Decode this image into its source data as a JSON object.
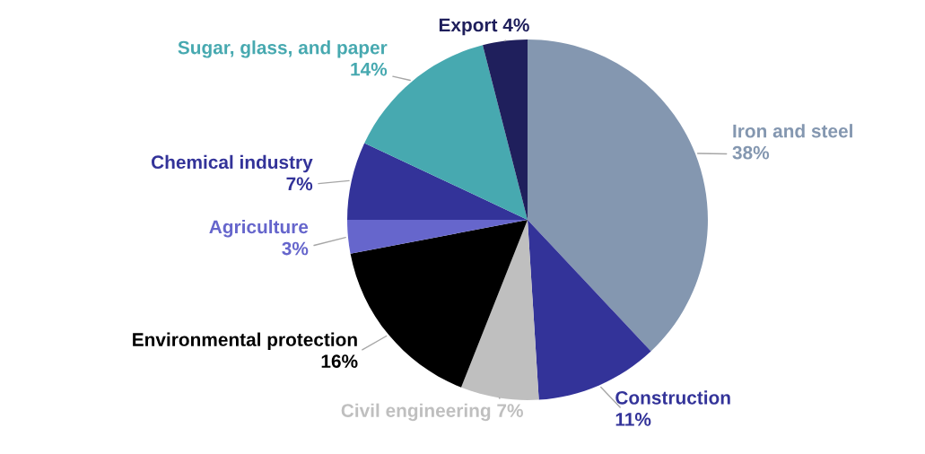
{
  "chart_data": {
    "type": "pie",
    "categories": [
      "Iron and steel",
      "Construction",
      "Civil engineering",
      "Environmental protection",
      "Agriculture",
      "Chemical industry",
      "Sugar, glass, and paper",
      "Export"
    ],
    "values": [
      38,
      11,
      7,
      16,
      3,
      7,
      14,
      4
    ],
    "colors": [
      "#8497b0",
      "#333399",
      "#bfbfbf",
      "#000000",
      "#6666cc",
      "#333399",
      "#47a9b0",
      "#1f1f5c"
    ],
    "value_labels": [
      "38%",
      "11%",
      "7%",
      "16%",
      "3%",
      "7%",
      "14%",
      "4%"
    ],
    "legend": false
  }
}
